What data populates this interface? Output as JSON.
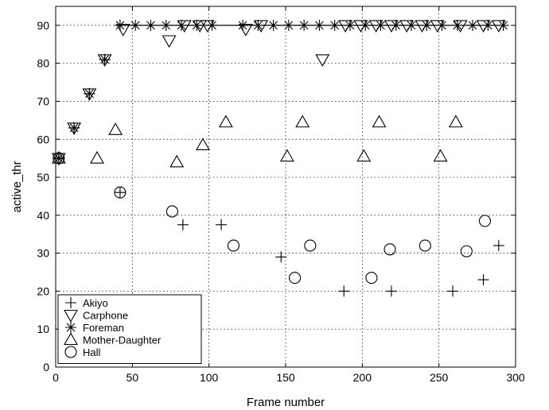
{
  "chart_data": {
    "type": "scatter",
    "title": "",
    "xlabel": "Frame number",
    "ylabel": "active_thr",
    "xlim": [
      0,
      300
    ],
    "ylim": [
      0,
      95
    ],
    "xticks": [
      0,
      50,
      100,
      150,
      200,
      250,
      300
    ],
    "yticks": [
      0,
      10,
      20,
      30,
      40,
      50,
      60,
      70,
      80,
      90
    ],
    "grid": true,
    "legend_position": "bottom-left",
    "reference_line": {
      "y": 90,
      "x_from": 42,
      "x_to": 292
    },
    "series": [
      {
        "name": "Akiyo",
        "marker": "plus",
        "points": [
          [
            2,
            55
          ],
          [
            12,
            63
          ],
          [
            22,
            72
          ],
          [
            32,
            81
          ],
          [
            42,
            46
          ],
          [
            83,
            37.5
          ],
          [
            108,
            37.5
          ],
          [
            147,
            29
          ],
          [
            188,
            20
          ],
          [
            219,
            20
          ],
          [
            259,
            20
          ],
          [
            279,
            23
          ],
          [
            289,
            32
          ]
        ]
      },
      {
        "name": "Carphone",
        "marker": "triangle-down",
        "points": [
          [
            2,
            55
          ],
          [
            12,
            63
          ],
          [
            22,
            72
          ],
          [
            32,
            81
          ],
          [
            44,
            89
          ],
          [
            74,
            86
          ],
          [
            84,
            90
          ],
          [
            94,
            90
          ],
          [
            99,
            90
          ],
          [
            124,
            89
          ],
          [
            134,
            90
          ],
          [
            174,
            81
          ],
          [
            189,
            90
          ],
          [
            199,
            90
          ],
          [
            209,
            90
          ],
          [
            219,
            90
          ],
          [
            229,
            90
          ],
          [
            239,
            90
          ],
          [
            249,
            90
          ],
          [
            264,
            90
          ],
          [
            279,
            90
          ],
          [
            289,
            90
          ]
        ]
      },
      {
        "name": "Foreman",
        "marker": "star",
        "points": [
          [
            2,
            55
          ],
          [
            12,
            63
          ],
          [
            22,
            72
          ],
          [
            32,
            81
          ],
          [
            42,
            90
          ],
          [
            52,
            90
          ],
          [
            62,
            90
          ],
          [
            72,
            90
          ],
          [
            82,
            90
          ],
          [
            92,
            90
          ],
          [
            102,
            90
          ],
          [
            122,
            90
          ],
          [
            132,
            90
          ],
          [
            142,
            90
          ],
          [
            152,
            90
          ],
          [
            162,
            90
          ],
          [
            172,
            90
          ],
          [
            182,
            90
          ],
          [
            192,
            90
          ],
          [
            202,
            90
          ],
          [
            212,
            90
          ],
          [
            222,
            90
          ],
          [
            232,
            90
          ],
          [
            242,
            90
          ],
          [
            252,
            90
          ],
          [
            262,
            90
          ],
          [
            272,
            90
          ],
          [
            282,
            90
          ],
          [
            292,
            90
          ]
        ]
      },
      {
        "name": "Mother-Daughter",
        "marker": "triangle-up",
        "points": [
          [
            2,
            55
          ],
          [
            27,
            55
          ],
          [
            39,
            62.5
          ],
          [
            79,
            54
          ],
          [
            96,
            58.5
          ],
          [
            111,
            64.5
          ],
          [
            151,
            55.5
          ],
          [
            161,
            64.5
          ],
          [
            201,
            55.5
          ],
          [
            211,
            64.5
          ],
          [
            251,
            55.5
          ],
          [
            261,
            64.5
          ]
        ]
      },
      {
        "name": "Hall",
        "marker": "circle",
        "points": [
          [
            2,
            55
          ],
          [
            42,
            46
          ],
          [
            76,
            41
          ],
          [
            116,
            32
          ],
          [
            156,
            23.5
          ],
          [
            166,
            32
          ],
          [
            206,
            23.5
          ],
          [
            218,
            31
          ],
          [
            241,
            32
          ],
          [
            268,
            30.5
          ],
          [
            280,
            38.5
          ]
        ]
      }
    ]
  }
}
